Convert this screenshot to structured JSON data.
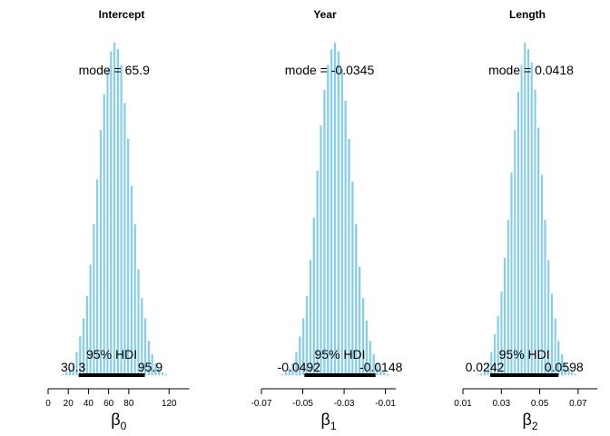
{
  "chart_data": [
    {
      "type": "bar",
      "title": "Intercept",
      "xlabel_base": "β",
      "xlabel_sub": "0",
      "xlim": [
        0,
        140
      ],
      "ticks": [
        0,
        20,
        40,
        60,
        80,
        120
      ],
      "tick_labels": [
        "0",
        "20",
        "40",
        "60",
        "80",
        "120"
      ],
      "bin_width": 3.4,
      "bins": [
        {
          "x": 11.4,
          "density": 0.06
        },
        {
          "x": 14.8,
          "density": 0.12
        },
        {
          "x": 18.2,
          "density": 0.2
        },
        {
          "x": 21.6,
          "density": 0.35
        },
        {
          "x": 25.0,
          "density": 0.6
        },
        {
          "x": 28.4,
          "density": 1.1
        },
        {
          "x": 31.8,
          "density": 1.8
        },
        {
          "x": 35.2,
          "density": 2.6
        },
        {
          "x": 38.6,
          "density": 3.6
        },
        {
          "x": 42.0,
          "density": 5.0
        },
        {
          "x": 45.4,
          "density": 6.8
        },
        {
          "x": 48.8,
          "density": 8.8
        },
        {
          "x": 52.2,
          "density": 11.0
        },
        {
          "x": 55.6,
          "density": 12.6
        },
        {
          "x": 59.0,
          "density": 13.7
        },
        {
          "x": 62.4,
          "density": 14.5
        },
        {
          "x": 65.8,
          "density": 14.9
        },
        {
          "x": 69.2,
          "density": 14.6
        },
        {
          "x": 72.6,
          "density": 13.9
        },
        {
          "x": 76.0,
          "density": 12.2
        },
        {
          "x": 79.4,
          "density": 10.6
        },
        {
          "x": 82.8,
          "density": 8.5
        },
        {
          "x": 86.2,
          "density": 6.8
        },
        {
          "x": 89.6,
          "density": 4.8
        },
        {
          "x": 93.0,
          "density": 3.5
        },
        {
          "x": 96.4,
          "density": 2.6
        },
        {
          "x": 99.8,
          "density": 1.6
        },
        {
          "x": 103.2,
          "density": 1.0
        },
        {
          "x": 106.6,
          "density": 0.6
        },
        {
          "x": 110.0,
          "density": 0.35
        },
        {
          "x": 113.4,
          "density": 0.2
        },
        {
          "x": 116.8,
          "density": 0.12
        },
        {
          "x": 120.2,
          "density": 0.06
        }
      ],
      "mode_label": "mode = 65.9",
      "hdi_label": "95% HDI",
      "hdi": [
        30.3,
        95.9
      ],
      "hdi_low_label": "30.3",
      "hdi_high_label": "95.9"
    },
    {
      "type": "bar",
      "title": "Year",
      "xlabel_base": "β",
      "xlabel_sub": "1",
      "xlim": [
        -0.07,
        -0.005
      ],
      "ticks": [
        -0.07,
        -0.05,
        -0.03,
        -0.01
      ],
      "tick_labels": [
        "-0.07",
        "-0.05",
        "-0.03",
        "-0.01"
      ],
      "bin_width": 0.0017,
      "bins": [
        {
          "x": -0.0684,
          "density": 0.05
        },
        {
          "x": -0.0599,
          "density": 0.12
        },
        {
          "x": -0.0582,
          "density": 0.2
        },
        {
          "x": -0.0565,
          "density": 0.35
        },
        {
          "x": -0.0548,
          "density": 0.6
        },
        {
          "x": -0.0531,
          "density": 1.1
        },
        {
          "x": -0.0514,
          "density": 1.8
        },
        {
          "x": -0.0497,
          "density": 2.6
        },
        {
          "x": -0.048,
          "density": 3.6
        },
        {
          "x": -0.0463,
          "density": 5.2
        },
        {
          "x": -0.0446,
          "density": 7.1
        },
        {
          "x": -0.0429,
          "density": 9.2
        },
        {
          "x": -0.0412,
          "density": 11.2
        },
        {
          "x": -0.0395,
          "density": 12.8
        },
        {
          "x": -0.0378,
          "density": 13.9
        },
        {
          "x": -0.0361,
          "density": 14.6
        },
        {
          "x": -0.0344,
          "density": 14.9
        },
        {
          "x": -0.0327,
          "density": 14.5
        },
        {
          "x": -0.031,
          "density": 13.7
        },
        {
          "x": -0.0293,
          "density": 12.3
        },
        {
          "x": -0.0276,
          "density": 10.6
        },
        {
          "x": -0.0259,
          "density": 8.7
        },
        {
          "x": -0.0242,
          "density": 6.8
        },
        {
          "x": -0.0225,
          "density": 4.9
        },
        {
          "x": -0.0208,
          "density": 3.5
        },
        {
          "x": -0.0191,
          "density": 2.5
        },
        {
          "x": -0.0174,
          "density": 1.6
        },
        {
          "x": -0.0157,
          "density": 1.0
        },
        {
          "x": -0.014,
          "density": 0.6
        },
        {
          "x": -0.0123,
          "density": 0.35
        },
        {
          "x": -0.0106,
          "density": 0.2
        },
        {
          "x": -0.0089,
          "density": 0.12
        }
      ],
      "mode_label": "mode = -0.0345",
      "hdi_label": "95% HDI",
      "hdi": [
        -0.0492,
        -0.0148
      ],
      "hdi_low_label": "-0.0492",
      "hdi_high_label": "-0.0148"
    },
    {
      "type": "bar",
      "title": "Length",
      "xlabel_base": "β",
      "xlabel_sub": "2",
      "xlim": [
        0.01,
        0.08
      ],
      "ticks": [
        0.01,
        0.03,
        0.05,
        0.07
      ],
      "tick_labels": [
        "0.01",
        "0.03",
        "0.05",
        "0.07"
      ],
      "bin_width": 0.00175,
      "bins": [
        {
          "x": 0.0152,
          "density": 0.05
        },
        {
          "x": 0.0178,
          "density": 0.1
        },
        {
          "x": 0.0196,
          "density": 0.15
        },
        {
          "x": 0.0213,
          "density": 0.35
        },
        {
          "x": 0.0231,
          "density": 0.6
        },
        {
          "x": 0.0248,
          "density": 1.1
        },
        {
          "x": 0.0266,
          "density": 1.9
        },
        {
          "x": 0.0283,
          "density": 2.7
        },
        {
          "x": 0.0301,
          "density": 3.8
        },
        {
          "x": 0.0318,
          "density": 5.3
        },
        {
          "x": 0.0336,
          "density": 7.0
        },
        {
          "x": 0.0353,
          "density": 9.1
        },
        {
          "x": 0.0371,
          "density": 11.0
        },
        {
          "x": 0.0388,
          "density": 12.7
        },
        {
          "x": 0.0406,
          "density": 13.9
        },
        {
          "x": 0.0423,
          "density": 14.9
        },
        {
          "x": 0.0441,
          "density": 14.6
        },
        {
          "x": 0.0458,
          "density": 14.0
        },
        {
          "x": 0.0476,
          "density": 12.8
        },
        {
          "x": 0.0493,
          "density": 11.1
        },
        {
          "x": 0.0511,
          "density": 9.0
        },
        {
          "x": 0.0528,
          "density": 7.0
        },
        {
          "x": 0.0546,
          "density": 5.2
        },
        {
          "x": 0.0563,
          "density": 3.7
        },
        {
          "x": 0.0581,
          "density": 2.6
        },
        {
          "x": 0.0598,
          "density": 1.6
        },
        {
          "x": 0.0616,
          "density": 1.0
        },
        {
          "x": 0.0633,
          "density": 0.6
        },
        {
          "x": 0.0651,
          "density": 0.35
        },
        {
          "x": 0.0668,
          "density": 0.2
        },
        {
          "x": 0.0686,
          "density": 0.12
        },
        {
          "x": 0.0703,
          "density": 0.06
        }
      ],
      "mode_label": "mode = 0.0418",
      "hdi_label": "95% HDI",
      "hdi": [
        0.0242,
        0.0598
      ],
      "hdi_low_label": "0.0242",
      "hdi_high_label": "0.0598"
    }
  ],
  "colors": {
    "bar_fill": "#87CEEB",
    "bar_edge": "#ffffff",
    "hdi_line": "#000000",
    "text": "#000000"
  }
}
